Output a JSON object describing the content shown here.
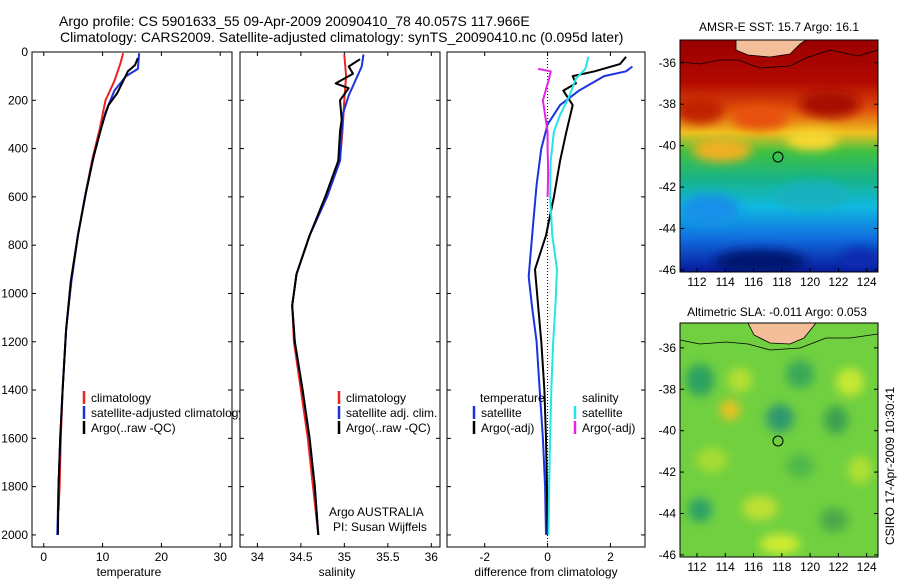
{
  "header": {
    "line1": "Argo profile: CS 5901633_55 09-Apr-2009 20090410_78 40.057S 117.966E",
    "line2": "Climatology: CARS2009. Satellite-adjusted climatology: synTS_20090410.nc (0.095d later)"
  },
  "side_credit": "CSIRO 17-Apr-2009 10:30:41",
  "colors": {
    "red": "#ee2222",
    "blue": "#1a33e0",
    "black": "#000000",
    "cyan": "#22e6e6",
    "magenta": "#e622e6"
  },
  "chart_data": [
    {
      "type": "line",
      "xlabel": "temperature",
      "ylim": [
        2050,
        0
      ],
      "xlim": [
        -2,
        32
      ],
      "xticks": [
        "0",
        "10",
        "20",
        "30"
      ],
      "yticks": [
        "0",
        "200",
        "400",
        "600",
        "800",
        "1000",
        "1200",
        "1400",
        "1600",
        "1800",
        "2000"
      ],
      "legend": [
        "climatology",
        "satellite-adjusted climatology",
        "Argo(..raw -QC)"
      ],
      "series": [
        {
          "name": "climatology",
          "color": "red",
          "points": [
            [
              13.5,
              5
            ],
            [
              13.0,
              50
            ],
            [
              12.0,
              120
            ],
            [
              10.5,
              200
            ],
            [
              9.5,
              320
            ],
            [
              8.2,
              450
            ],
            [
              7.0,
              600
            ],
            [
              5.8,
              760
            ],
            [
              4.6,
              950
            ],
            [
              3.8,
              1150
            ],
            [
              3.2,
              1400
            ],
            [
              2.9,
              1600
            ],
            [
              2.7,
              1800
            ],
            [
              2.5,
              1900
            ]
          ]
        },
        {
          "name": "satellite-adjusted climatology",
          "color": "blue",
          "points": [
            [
              16.2,
              5
            ],
            [
              16.0,
              70
            ],
            [
              14.0,
              100
            ],
            [
              12.0,
              160
            ],
            [
              10.5,
              250
            ],
            [
              9.6,
              330
            ],
            [
              8.3,
              450
            ],
            [
              7.0,
              600
            ],
            [
              5.8,
              760
            ],
            [
              4.7,
              950
            ],
            [
              3.8,
              1150
            ],
            [
              3.2,
              1400
            ],
            [
              2.8,
              1600
            ],
            [
              2.5,
              1800
            ],
            [
              2.3,
              2000
            ]
          ]
        },
        {
          "name": "Argo(..raw -QC)",
          "color": "black",
          "points": [
            [
              16.0,
              25
            ],
            [
              15.5,
              55
            ],
            [
              14.3,
              80
            ],
            [
              13.5,
              120
            ],
            [
              12.5,
              170
            ],
            [
              11.0,
              220
            ],
            [
              10.3,
              270
            ],
            [
              9.6,
              330
            ],
            [
              8.5,
              430
            ],
            [
              7.2,
              580
            ],
            [
              5.8,
              760
            ],
            [
              4.6,
              950
            ],
            [
              3.8,
              1150
            ],
            [
              3.2,
              1400
            ],
            [
              2.8,
              1600
            ],
            [
              2.5,
              1800
            ],
            [
              2.4,
              2000
            ]
          ]
        }
      ]
    },
    {
      "type": "line",
      "xlabel": "salinity",
      "ylim": [
        2050,
        0
      ],
      "xlim": [
        33.8,
        36.1
      ],
      "xticks": [
        "34",
        "34.5",
        "35",
        "35.5",
        "36"
      ],
      "legend": [
        "climatology",
        "satellite adj. clim.",
        "Argo(..raw -QC)"
      ],
      "annotations": [
        "Argo AUSTRALIA",
        "PI: Susan Wijffels"
      ],
      "series": [
        {
          "name": "climatology",
          "color": "red",
          "points": [
            [
              35.0,
              10
            ],
            [
              35.02,
              100
            ],
            [
              35.0,
              200
            ],
            [
              34.98,
              320
            ],
            [
              34.95,
              450
            ],
            [
              34.8,
              600
            ],
            [
              34.6,
              760
            ],
            [
              34.45,
              920
            ],
            [
              34.4,
              1050
            ],
            [
              34.42,
              1200
            ],
            [
              34.5,
              1400
            ],
            [
              34.58,
              1600
            ],
            [
              34.64,
              1800
            ],
            [
              34.7,
              2000
            ]
          ]
        },
        {
          "name": "satellite adj. clim.",
          "color": "blue",
          "points": [
            [
              35.22,
              10
            ],
            [
              35.2,
              60
            ],
            [
              35.15,
              100
            ],
            [
              35.05,
              180
            ],
            [
              34.98,
              260
            ],
            [
              34.97,
              330
            ],
            [
              34.95,
              450
            ],
            [
              34.8,
              600
            ],
            [
              34.6,
              760
            ],
            [
              34.45,
              920
            ],
            [
              34.4,
              1050
            ],
            [
              34.43,
              1200
            ],
            [
              34.52,
              1400
            ],
            [
              34.6,
              1600
            ],
            [
              34.66,
              1800
            ],
            [
              34.7,
              2000
            ]
          ]
        },
        {
          "name": "Argo(..raw -QC)",
          "color": "black",
          "points": [
            [
              35.18,
              30
            ],
            [
              35.05,
              60
            ],
            [
              35.1,
              90
            ],
            [
              34.9,
              130
            ],
            [
              35.05,
              150
            ],
            [
              34.95,
              200
            ],
            [
              34.97,
              280
            ],
            [
              34.95,
              330
            ],
            [
              34.93,
              450
            ],
            [
              34.78,
              600
            ],
            [
              34.6,
              760
            ],
            [
              34.45,
              920
            ],
            [
              34.4,
              1050
            ],
            [
              34.43,
              1200
            ],
            [
              34.52,
              1400
            ],
            [
              34.6,
              1600
            ],
            [
              34.66,
              1800
            ],
            [
              34.7,
              2000
            ]
          ]
        }
      ]
    },
    {
      "type": "line",
      "xlabel": "difference from climatology",
      "ylim": [
        2050,
        0
      ],
      "xlim": [
        -3.2,
        3.1
      ],
      "xticks": [
        "-2",
        "0",
        "2"
      ],
      "legend_groups": [
        {
          "heading": "temperature",
          "items": [
            "satellite",
            "Argo(-adj)"
          ]
        },
        {
          "heading": "salinity",
          "items": [
            "satellite",
            "Argo(-adj)"
          ]
        }
      ],
      "series": [
        {
          "name": "temperature satellite",
          "color": "blue",
          "points": [
            [
              2.7,
              60
            ],
            [
              2.5,
              80
            ],
            [
              1.8,
              100
            ],
            [
              1.0,
              160
            ],
            [
              0.4,
              220
            ],
            [
              0.0,
              300
            ],
            [
              -0.2,
              400
            ],
            [
              -0.35,
              550
            ],
            [
              -0.45,
              700
            ],
            [
              -0.55,
              850
            ],
            [
              -0.6,
              930
            ],
            [
              -0.5,
              1050
            ],
            [
              -0.35,
              1200
            ],
            [
              -0.25,
              1400
            ],
            [
              -0.15,
              1600
            ],
            [
              -0.08,
              1800
            ],
            [
              -0.05,
              2000
            ]
          ]
        },
        {
          "name": "temperature Argo(-adj)",
          "color": "black",
          "points": [
            [
              2.5,
              20
            ],
            [
              2.3,
              50
            ],
            [
              1.5,
              80
            ],
            [
              0.8,
              100
            ],
            [
              0.9,
              130
            ],
            [
              0.5,
              160
            ],
            [
              0.8,
              220
            ],
            [
              0.6,
              330
            ],
            [
              0.4,
              450
            ],
            [
              0.2,
              600
            ],
            [
              -0.05,
              760
            ],
            [
              -0.4,
              900
            ],
            [
              -0.3,
              1050
            ],
            [
              -0.2,
              1200
            ],
            [
              -0.1,
              1400
            ],
            [
              -0.05,
              1600
            ],
            [
              -0.02,
              1800
            ],
            [
              0.0,
              2000
            ]
          ]
        },
        {
          "name": "salinity satellite",
          "color": "cyan",
          "points": [
            [
              1.3,
              20
            ],
            [
              1.2,
              70
            ],
            [
              0.9,
              110
            ],
            [
              0.7,
              180
            ],
            [
              0.4,
              260
            ],
            [
              0.2,
              330
            ],
            [
              0.1,
              450
            ],
            [
              0.08,
              600
            ],
            [
              0.15,
              760
            ],
            [
              0.3,
              900
            ],
            [
              0.25,
              1050
            ],
            [
              0.18,
              1200
            ],
            [
              0.12,
              1400
            ],
            [
              0.08,
              1600
            ],
            [
              0.05,
              1800
            ],
            [
              0.03,
              2000
            ]
          ]
        },
        {
          "name": "salinity Argo(-adj)",
          "color": "magenta",
          "points": [
            [
              -0.3,
              70
            ],
            [
              0.1,
              80
            ],
            [
              0.05,
              110
            ],
            [
              -0.15,
              200
            ],
            [
              0.0,
              330
            ],
            [
              0.0,
              400
            ],
            [
              0.02,
              500
            ],
            [
              0.0,
              600
            ]
          ]
        }
      ]
    }
  ],
  "maps": [
    {
      "title": "AMSR-E SST: 15.7 Argo: 16.1",
      "xticks": [
        "112",
        "114",
        "116",
        "118",
        "120",
        "122",
        "124"
      ],
      "yticks": [
        "-36",
        "-38",
        "-40",
        "-42",
        "-44",
        "-46"
      ]
    },
    {
      "title": "Altimetric SLA: -0.011 Argo: 0.053",
      "xticks": [
        "112",
        "114",
        "116",
        "118",
        "120",
        "122",
        "124"
      ],
      "yticks": [
        "-36",
        "-38",
        "-40",
        "-42",
        "-44",
        "-46"
      ]
    }
  ]
}
